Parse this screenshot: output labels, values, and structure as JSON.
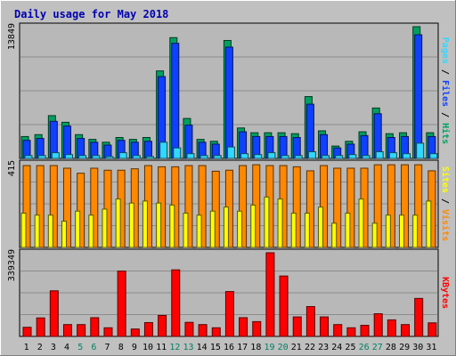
{
  "chart_data": [
    {
      "type": "bar",
      "title": "Daily usage for May 2018",
      "categories": [
        "1",
        "2",
        "3",
        "4",
        "5",
        "6",
        "7",
        "8",
        "9",
        "10",
        "11",
        "12",
        "13",
        "14",
        "15",
        "16",
        "17",
        "18",
        "19",
        "20",
        "21",
        "22",
        "23",
        "24",
        "25",
        "26",
        "27",
        "28",
        "29",
        "30",
        "31"
      ],
      "weekend_days": [
        "5",
        "6",
        "12",
        "13",
        "19",
        "20",
        "26",
        "27"
      ],
      "ylabel_max": "13849",
      "ylabel_parts": [
        "Pages",
        "Files",
        "Hits"
      ],
      "series": [
        {
          "name": "Hits",
          "values": [
            2300,
            2500,
            4500,
            3800,
            2500,
            2000,
            1700,
            2200,
            2000,
            2200,
            9200,
            12700,
            4200,
            2000,
            1800,
            12400,
            3200,
            2700,
            2700,
            2700,
            2600,
            6500,
            2900,
            1300,
            1800,
            2800,
            5300,
            2600,
            2700,
            13849,
            2700
          ]
        },
        {
          "name": "Files",
          "values": [
            1900,
            2100,
            3900,
            3400,
            2100,
            1700,
            1400,
            1900,
            1700,
            1800,
            8600,
            12100,
            3500,
            1700,
            1500,
            11700,
            2800,
            2300,
            2300,
            2300,
            2200,
            5700,
            2500,
            1100,
            1500,
            2400,
            4700,
            2200,
            2300,
            13000,
            2300
          ]
        },
        {
          "name": "Pages",
          "values": [
            300,
            300,
            600,
            400,
            300,
            300,
            200,
            600,
            300,
            200,
            1700,
            1100,
            500,
            300,
            300,
            1200,
            500,
            400,
            600,
            300,
            300,
            700,
            300,
            300,
            400,
            300,
            700,
            600,
            500,
            1600,
            500
          ]
        }
      ],
      "colors": {
        "Hits": "#00a060",
        "Files": "#1040ff",
        "Pages": "#30d8ff"
      }
    },
    {
      "type": "bar",
      "categories": [
        "1",
        "2",
        "3",
        "4",
        "5",
        "6",
        "7",
        "8",
        "9",
        "10",
        "11",
        "12",
        "13",
        "14",
        "15",
        "16",
        "17",
        "18",
        "19",
        "20",
        "21",
        "22",
        "23",
        "24",
        "25",
        "26",
        "27",
        "28",
        "29",
        "30",
        "31"
      ],
      "ylabel_max": "415",
      "ylabel_parts": [
        "Sites",
        "Visits"
      ],
      "series": [
        {
          "name": "Visits",
          "values": [
            406,
            406,
            406,
            393,
            368,
            393,
            383,
            383,
            390,
            406,
            400,
            400,
            406,
            406,
            378,
            383,
            406,
            410,
            406,
            406,
            400,
            380,
            406,
            393,
            393,
            393,
            410,
            410,
            410,
            410,
            380
          ]
        },
        {
          "name": "Sites",
          "values": [
            170,
            160,
            160,
            130,
            180,
            160,
            190,
            240,
            220,
            230,
            220,
            210,
            170,
            160,
            180,
            200,
            180,
            210,
            250,
            240,
            170,
            170,
            200,
            120,
            170,
            240,
            120,
            160,
            160,
            160,
            230
          ]
        }
      ],
      "colors": {
        "Visits": "#ff8800",
        "Sites": "#ffff00"
      }
    },
    {
      "type": "bar",
      "categories": [
        "1",
        "2",
        "3",
        "4",
        "5",
        "6",
        "7",
        "8",
        "9",
        "10",
        "11",
        "12",
        "13",
        "14",
        "15",
        "16",
        "17",
        "18",
        "19",
        "20",
        "21",
        "22",
        "23",
        "24",
        "25",
        "26",
        "27",
        "28",
        "29",
        "30",
        "31"
      ],
      "ylabel_max": "339349",
      "ylabel_parts": [
        "KBytes"
      ],
      "series": [
        {
          "name": "KBytes",
          "values": [
            37000,
            75000,
            185000,
            48000,
            48000,
            76000,
            35000,
            265000,
            30000,
            56000,
            85000,
            270000,
            57000,
            48000,
            35000,
            182000,
            76000,
            60000,
            339349,
            245000,
            79000,
            121000,
            79000,
            48000,
            35000,
            45000,
            92000,
            67000,
            48000,
            154000,
            55000
          ]
        }
      ],
      "colors": {
        "KBytes": "#ff0000"
      }
    }
  ]
}
